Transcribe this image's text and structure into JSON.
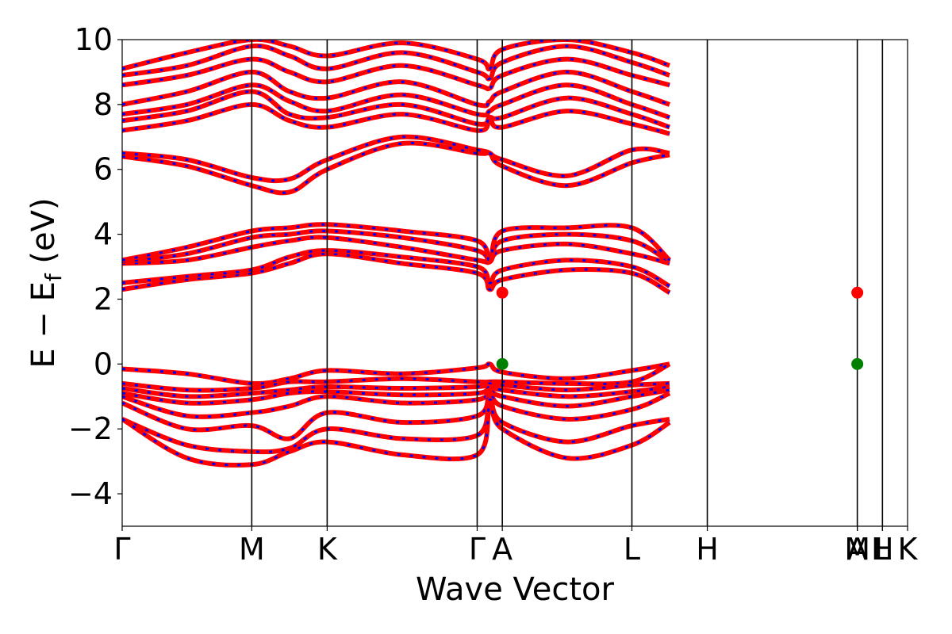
{
  "chart_data": {
    "type": "line",
    "title": "",
    "xlabel": "Wave Vector",
    "ylabel": "E − E",
    "ylabel_subscript": "f",
    "ylabel_unit": " (eV)",
    "ylim": [
      -5,
      10
    ],
    "yticks": [
      -4,
      -2,
      0,
      2,
      4,
      6,
      8,
      10
    ],
    "ytick_labels": [
      "−4",
      "−2",
      "0",
      "2",
      "4",
      "6",
      "8",
      "10"
    ],
    "xlim": [
      0,
      1
    ],
    "kpath": [
      {
        "label": "Γ",
        "x": 0.0
      },
      {
        "label": "M",
        "x": 0.165
      },
      {
        "label": "K",
        "x": 0.261
      },
      {
        "label": "Γ",
        "x": 0.452
      },
      {
        "label": "A",
        "x": 0.484
      },
      {
        "label": "L",
        "x": 0.649
      },
      {
        "label": "H",
        "x": 0.745
      },
      {
        "label": "A",
        "x": 0.936
      },
      {
        "label": "M",
        "x": 0.936
      },
      {
        "label": "L",
        "x": 0.968
      },
      {
        "label": "H",
        "x": 0.968
      },
      {
        "label": "K",
        "x": 1.0
      }
    ],
    "series_colors": {
      "primary": "#ff0000",
      "secondary": "#0000ff"
    },
    "markers": [
      {
        "x": 0.484,
        "y": 2.2,
        "color": "#ff0000"
      },
      {
        "x": 0.484,
        "y": 0.0,
        "color": "#008000"
      },
      {
        "x": 0.936,
        "y": 2.2,
        "color": "#ff0000"
      },
      {
        "x": 0.936,
        "y": 0.0,
        "color": "#008000"
      }
    ],
    "bands": [
      [
        -0.15,
        -0.3,
        -0.6,
        -0.45,
        -0.2,
        -0.3,
        -0.12,
        0.0,
        -0.25,
        -0.45,
        -0.2,
        -0.0
      ],
      [
        -0.6,
        -0.8,
        -0.75,
        -0.55,
        -0.55,
        -0.45,
        -0.55,
        -0.55,
        -0.55,
        -0.6,
        -0.55,
        -0.0
      ],
      [
        -0.75,
        -1.0,
        -0.9,
        -0.8,
        -0.7,
        -0.75,
        -0.7,
        -0.6,
        -0.65,
        -0.8,
        -0.65,
        -0.6
      ],
      [
        -0.9,
        -1.2,
        -1.1,
        -0.9,
        -0.85,
        -0.95,
        -0.9,
        -0.7,
        -0.8,
        -1.0,
        -0.85,
        -0.7
      ],
      [
        -1.0,
        -1.6,
        -1.5,
        -1.3,
        -1.0,
        -1.2,
        -1.1,
        -0.8,
        -1.0,
        -1.3,
        -1.0,
        -0.8
      ],
      [
        -1.2,
        -2.0,
        -1.9,
        -2.3,
        -1.5,
        -1.8,
        -1.6,
        -0.9,
        -1.3,
        -1.7,
        -1.4,
        -0.9
      ],
      [
        -1.7,
        -2.5,
        -2.7,
        -2.6,
        -2.0,
        -2.3,
        -2.2,
        -1.1,
        -1.8,
        -2.4,
        -1.9,
        -1.7
      ],
      [
        -1.7,
        -2.9,
        -3.1,
        -2.7,
        -2.4,
        -2.8,
        -2.8,
        -1.3,
        -2.0,
        -2.9,
        -2.5,
        -1.8
      ],
      [
        2.3,
        2.6,
        2.8,
        3.1,
        3.4,
        3.1,
        2.8,
        2.3,
        2.6,
        2.9,
        2.8,
        2.2
      ],
      [
        2.5,
        2.7,
        2.9,
        3.3,
        3.5,
        3.3,
        3.0,
        2.5,
        2.9,
        3.2,
        3.0,
        2.4
      ],
      [
        3.1,
        3.2,
        3.6,
        3.8,
        3.9,
        3.6,
        3.2,
        3.15,
        3.5,
        3.7,
        3.4,
        3.1
      ],
      [
        3.15,
        3.4,
        3.9,
        4.0,
        4.1,
        3.9,
        3.5,
        3.15,
        3.8,
        4.0,
        3.8,
        3.15
      ],
      [
        3.2,
        3.6,
        4.1,
        4.2,
        4.3,
        4.1,
        3.8,
        3.2,
        4.1,
        4.2,
        4.2,
        3.2
      ],
      [
        6.4,
        6.1,
        5.5,
        5.3,
        6.0,
        6.8,
        6.5,
        6.5,
        6.1,
        5.5,
        6.2,
        6.45
      ],
      [
        6.5,
        6.3,
        5.75,
        5.7,
        6.3,
        7.0,
        6.6,
        6.5,
        6.3,
        5.8,
        6.6,
        6.5
      ],
      [
        7.2,
        7.5,
        8.0,
        7.5,
        7.3,
        7.7,
        7.2,
        7.5,
        7.3,
        7.8,
        7.4,
        7.1
      ],
      [
        7.5,
        7.8,
        8.4,
        7.7,
        7.6,
        8.0,
        7.4,
        7.6,
        7.6,
        8.2,
        7.7,
        7.3
      ],
      [
        7.7,
        8.0,
        8.6,
        8.1,
        7.8,
        8.3,
        7.7,
        7.8,
        8.0,
        8.6,
        8.0,
        7.6
      ],
      [
        8.0,
        8.4,
        9.0,
        8.4,
        8.2,
        8.7,
        8.0,
        8.1,
        8.4,
        9.0,
        8.4,
        8.0
      ],
      [
        8.6,
        8.9,
        9.4,
        9.0,
        8.7,
        9.2,
        8.6,
        8.5,
        8.9,
        9.4,
        8.9,
        8.6
      ],
      [
        8.9,
        9.2,
        9.8,
        9.5,
        9.1,
        9.6,
        9.0,
        8.8,
        9.3,
        9.8,
        9.3,
        8.9
      ],
      [
        9.1,
        9.6,
        10.0,
        9.8,
        9.5,
        9.9,
        9.4,
        9.1,
        9.7,
        10.0,
        9.6,
        9.2
      ]
    ]
  }
}
